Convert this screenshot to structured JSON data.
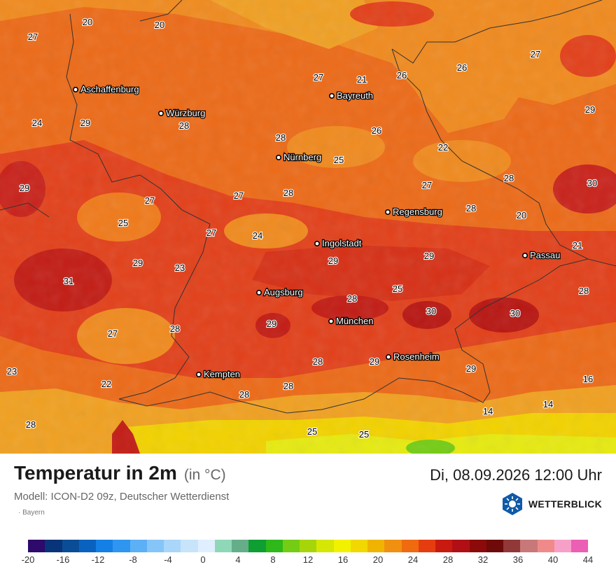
{
  "title": "Temperatur in 2m",
  "unit": "(in °C)",
  "model": "Modell: ICON-D2 09z, Deutscher Wetterdienst",
  "region": "Bayern",
  "datetime": "Di, 08.09.2026 12:00 Uhr",
  "brand": "WETTERBLICK",
  "cities": [
    {
      "name": "Aschaffenburg"
    },
    {
      "name": "Würzburg"
    },
    {
      "name": "Bayreuth"
    },
    {
      "name": "Nürnberg"
    },
    {
      "name": "Regensburg"
    },
    {
      "name": "Ingolstadt"
    },
    {
      "name": "Passau"
    },
    {
      "name": "Augsburg"
    },
    {
      "name": "München"
    },
    {
      "name": "Rosenheim"
    },
    {
      "name": "Kempten"
    }
  ],
  "temperatures": [
    "20",
    "20",
    "27",
    "27",
    "21",
    "26",
    "26",
    "27",
    "29",
    "24",
    "29",
    "28",
    "28",
    "26",
    "25",
    "22",
    "28",
    "27",
    "30",
    "28",
    "27",
    "29",
    "27",
    "28",
    "25",
    "27",
    "24",
    "20",
    "21",
    "29",
    "29",
    "23",
    "31",
    "29",
    "25",
    "30",
    "30",
    "28",
    "28",
    "29",
    "27",
    "28",
    "29",
    "23",
    "22",
    "28",
    "28",
    "29",
    "16",
    "14",
    "28",
    "28",
    "14",
    "25",
    "25"
  ],
  "legend": {
    "colors": [
      "#2d0a6b",
      "#08347a",
      "#0a4d96",
      "#0a62bf",
      "#1480e6",
      "#2e96f0",
      "#5cb0f5",
      "#86c5f8",
      "#a9d6f9",
      "#c7e4fb",
      "#dfefff",
      "#8ed8b7",
      "#66ad8a",
      "#0f9e31",
      "#2eb81a",
      "#74cc14",
      "#a6d60a",
      "#d6e605",
      "#f2f200",
      "#f2d700",
      "#f0b400",
      "#f09010",
      "#f06a10",
      "#e63d10",
      "#c91a10",
      "#b01015",
      "#8c0a0a",
      "#6e0a0a",
      "#913838",
      "#c87878",
      "#f08a8a",
      "#f6a0c8",
      "#eb5fb4"
    ],
    "ticks": [
      "-20",
      "-16",
      "-12",
      "-8",
      "-4",
      "0",
      "4",
      "8",
      "12",
      "16",
      "20",
      "24",
      "28",
      "32",
      "36",
      "40",
      "44"
    ]
  }
}
